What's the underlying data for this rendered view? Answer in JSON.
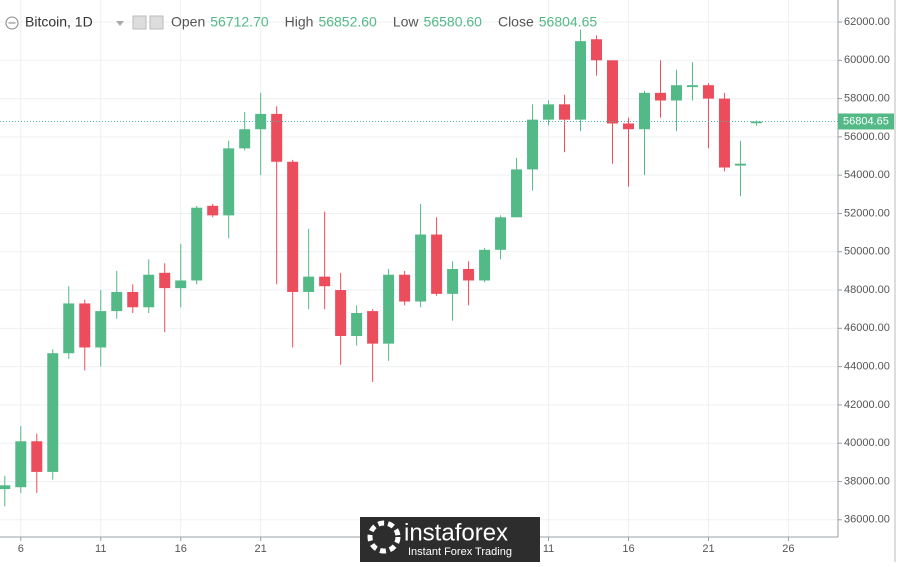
{
  "chart_data": {
    "type": "candlestick",
    "symbol": "Bitcoin, 1D",
    "header": [
      {
        "label": "Open",
        "value": "56712.70"
      },
      {
        "label": "High",
        "value": "56852.60"
      },
      {
        "label": "Low",
        "value": "56580.60"
      },
      {
        "label": "Close",
        "value": "56804.65"
      }
    ],
    "last_price": "56804.65",
    "up_color": "#53b987",
    "down_color": "#eb4d5c",
    "grid": true,
    "open": [
      37600,
      37700,
      40100,
      38500,
      44700,
      47300,
      45000,
      46900,
      47900,
      47100,
      48900,
      48100,
      48500,
      52400,
      51900,
      55400,
      56400,
      57200,
      54700,
      47900,
      48700,
      48000,
      45600,
      46900,
      45200,
      48800,
      47400,
      50900,
      47800,
      49100,
      48500,
      50100,
      51800,
      54300,
      56900,
      57700,
      56900,
      61100,
      60000,
      56700,
      56400,
      58300,
      57900,
      58600,
      58700,
      58000,
      54500,
      56712.7
    ],
    "high": [
      38300,
      40900,
      40500,
      44900,
      48200,
      47500,
      48000,
      49000,
      48300,
      49600,
      49400,
      50400,
      52400,
      52500,
      55800,
      57300,
      58300,
      57600,
      54800,
      51200,
      52100,
      48900,
      47200,
      47000,
      49100,
      49000,
      52500,
      51800,
      49500,
      49500,
      50200,
      51900,
      54900,
      57700,
      57900,
      58200,
      61600,
      61300,
      60000,
      57000,
      58400,
      60000,
      59500,
      59900,
      58800,
      58300,
      55800,
      56852.6
    ],
    "low": [
      36700,
      37400,
      37400,
      38100,
      44400,
      43800,
      44000,
      46500,
      46800,
      46800,
      45800,
      47100,
      48300,
      51800,
      50700,
      55300,
      54000,
      48300,
      45000,
      47000,
      47000,
      44100,
      45100,
      43200,
      44300,
      47200,
      47100,
      47700,
      46400,
      47200,
      48400,
      49600,
      51800,
      53200,
      56600,
      55200,
      56300,
      59200,
      54600,
      53400,
      54000,
      57000,
      56300,
      57900,
      55400,
      54200,
      52900,
      56580.6
    ],
    "close": [
      37800,
      40100,
      38500,
      44700,
      47300,
      45000,
      46900,
      47900,
      47100,
      48800,
      48100,
      48500,
      52300,
      51900,
      55400,
      56400,
      57200,
      54700,
      47900,
      48700,
      48200,
      45600,
      46800,
      45200,
      48800,
      47400,
      50900,
      47800,
      49100,
      48500,
      50100,
      51800,
      54300,
      56900,
      57700,
      56900,
      61000,
      60000,
      56700,
      56400,
      58300,
      57900,
      58700,
      58700,
      58000,
      54400,
      54600,
      56804.65
    ],
    "xlim": [
      -0.3,
      52.1
    ],
    "xticks": [
      {
        "value": 1,
        "label": "6"
      },
      {
        "value": 6,
        "label": "11"
      },
      {
        "value": 11,
        "label": "16"
      },
      {
        "value": 16,
        "label": "21"
      },
      {
        "value": 34,
        "label": "11"
      },
      {
        "value": 39,
        "label": "16"
      },
      {
        "value": 44,
        "label": "21"
      },
      {
        "value": 49,
        "label": "26"
      }
    ],
    "ylim": [
      35100,
      63150
    ],
    "yticks": [
      {
        "value": 36000,
        "label": "36000.00"
      },
      {
        "value": 38000,
        "label": "38000.00"
      },
      {
        "value": 40000,
        "label": "40000.00"
      },
      {
        "value": 42000,
        "label": "42000.00"
      },
      {
        "value": 44000,
        "label": "44000.00"
      },
      {
        "value": 46000,
        "label": "46000.00"
      },
      {
        "value": 48000,
        "label": "48000.00"
      },
      {
        "value": 50000,
        "label": "50000.00"
      },
      {
        "value": 52000,
        "label": "52000.00"
      },
      {
        "value": 54000,
        "label": "54000.00"
      },
      {
        "value": 56000,
        "label": "56000.00"
      },
      {
        "value": 58000,
        "label": "58000.00"
      },
      {
        "value": 60000,
        "label": "60000.00"
      },
      {
        "value": 62000,
        "label": "62000.00"
      }
    ],
    "watermark": {
      "brand": "instaforex",
      "tagline": "Instant Forex Trading"
    }
  }
}
